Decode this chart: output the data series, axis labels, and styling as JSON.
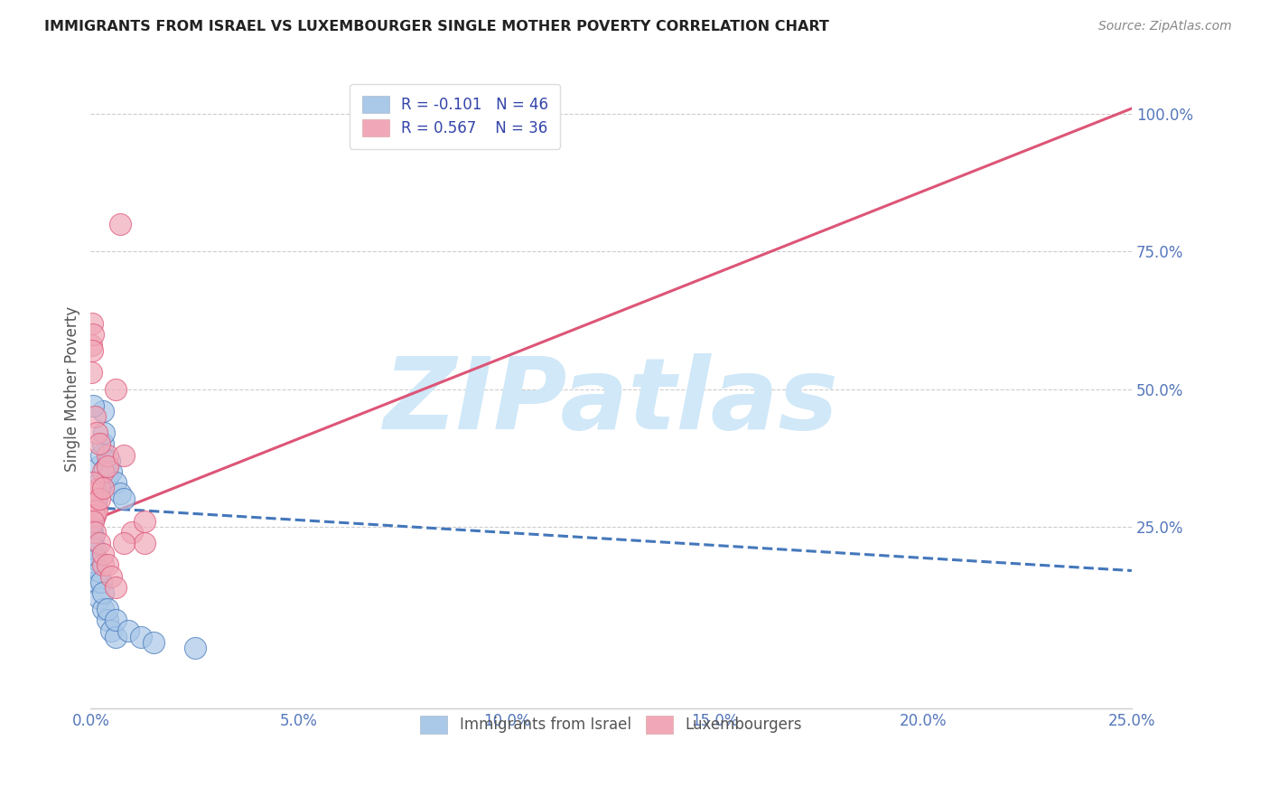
{
  "title": "IMMIGRANTS FROM ISRAEL VS LUXEMBOURGER SINGLE MOTHER POVERTY CORRELATION CHART",
  "source": "Source: ZipAtlas.com",
  "ylabel": "Single Mother Poverty",
  "ylabel_ticks": [
    "100.0%",
    "75.0%",
    "50.0%",
    "25.0%"
  ],
  "ylabel_tick_vals": [
    1.0,
    0.75,
    0.5,
    0.25
  ],
  "xtick_labels": [
    "0.0%",
    "5.0%",
    "10.0%",
    "15.0%",
    "20.0%",
    "25.0%"
  ],
  "xtick_vals": [
    0.0,
    0.05,
    0.1,
    0.15,
    0.2,
    0.25
  ],
  "legend1_label": "R = -0.101   N = 46",
  "legend2_label": "R = 0.567    N = 36",
  "legend1_color": "#aac8e8",
  "legend2_color": "#f0a8b8",
  "line1_color": "#4477bb",
  "line2_color": "#dd5577",
  "watermark": "ZIPatlas",
  "watermark_color": "#d0e8f8",
  "xlim": [
    0.0,
    0.25
  ],
  "ylim": [
    -0.08,
    1.08
  ],
  "background": "#ffffff",
  "grid_color": "#cccccc",
  "axis_label_color": "#5577bb",
  "title_color": "#222222",
  "blue_line_x": [
    0.0,
    0.25
  ],
  "blue_line_y": [
    0.285,
    0.17
  ],
  "pink_line_x": [
    0.0,
    0.25
  ],
  "pink_line_y": [
    0.26,
    1.01
  ],
  "blue_x": [
    0.0002,
    0.0004,
    0.0006,
    0.0008,
    0.001,
    0.0012,
    0.0015,
    0.0018,
    0.002,
    0.0022,
    0.0025,
    0.003,
    0.0032,
    0.0035,
    0.004,
    0.0045,
    0.005,
    0.006,
    0.007,
    0.008,
    0.0002,
    0.0004,
    0.0006,
    0.001,
    0.0015,
    0.002,
    0.003,
    0.004,
    0.005,
    0.006,
    0.0002,
    0.0004,
    0.0006,
    0.001,
    0.0015,
    0.002,
    0.0025,
    0.003,
    0.004,
    0.006,
    0.009,
    0.012,
    0.015,
    0.025,
    0.003,
    0.0005
  ],
  "blue_y": [
    0.285,
    0.29,
    0.28,
    0.27,
    0.3,
    0.295,
    0.31,
    0.32,
    0.33,
    0.36,
    0.38,
    0.4,
    0.42,
    0.355,
    0.34,
    0.37,
    0.35,
    0.33,
    0.31,
    0.3,
    0.25,
    0.22,
    0.2,
    0.18,
    0.15,
    0.12,
    0.1,
    0.08,
    0.06,
    0.05,
    0.26,
    0.24,
    0.23,
    0.21,
    0.19,
    0.17,
    0.15,
    0.13,
    0.1,
    0.08,
    0.06,
    0.05,
    0.04,
    0.03,
    0.46,
    0.47
  ],
  "pink_x": [
    0.0002,
    0.0004,
    0.0006,
    0.001,
    0.0015,
    0.002,
    0.003,
    0.004,
    0.006,
    0.0002,
    0.0004,
    0.0006,
    0.001,
    0.0015,
    0.002,
    0.003,
    0.004,
    0.0002,
    0.0004,
    0.001,
    0.0015,
    0.002,
    0.003,
    0.007,
    0.008,
    0.01,
    0.013,
    0.0005,
    0.001,
    0.002,
    0.003,
    0.004,
    0.005,
    0.006,
    0.008,
    0.013
  ],
  "pink_y": [
    0.58,
    0.62,
    0.6,
    0.28,
    0.3,
    0.32,
    0.35,
    0.38,
    0.5,
    0.29,
    0.31,
    0.33,
    0.27,
    0.28,
    0.3,
    0.32,
    0.36,
    0.53,
    0.57,
    0.45,
    0.42,
    0.4,
    0.18,
    0.8,
    0.38,
    0.24,
    0.22,
    0.26,
    0.24,
    0.22,
    0.2,
    0.18,
    0.16,
    0.14,
    0.22,
    0.26
  ]
}
